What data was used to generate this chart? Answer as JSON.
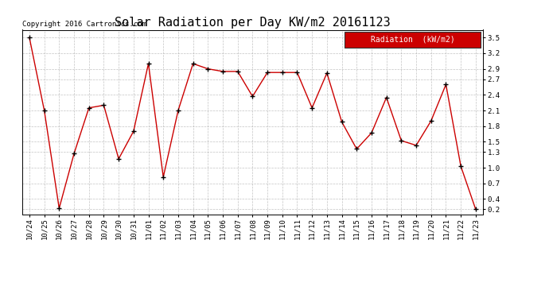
{
  "title": "Solar Radiation per Day KW/m2 20161123",
  "copyright_text": "Copyright 2016 Cartronics.com",
  "legend_label": "Radiation  (kW/m2)",
  "dates": [
    "10/24",
    "10/25",
    "10/26",
    "10/27",
    "10/28",
    "10/29",
    "10/30",
    "10/31",
    "11/01",
    "11/02",
    "11/03",
    "11/04",
    "11/05",
    "11/06",
    "11/07",
    "11/08",
    "11/09",
    "11/10",
    "11/11",
    "11/12",
    "11/13",
    "11/14",
    "11/15",
    "11/16",
    "11/17",
    "11/18",
    "11/19",
    "11/20",
    "11/21",
    "11/22",
    "11/23"
  ],
  "values": [
    3.5,
    2.1,
    0.22,
    1.27,
    2.15,
    2.2,
    1.17,
    1.7,
    3.0,
    0.82,
    2.1,
    3.0,
    2.9,
    2.85,
    2.85,
    2.37,
    2.83,
    2.83,
    2.83,
    2.15,
    2.82,
    1.88,
    1.36,
    1.67,
    2.35,
    1.52,
    1.43,
    1.9,
    2.6,
    1.03,
    0.2
  ],
  "line_color": "#cc0000",
  "marker_color": "#000000",
  "legend_bg": "#cc0000",
  "legend_text_color": "#ffffff",
  "grid_color": "#aaaaaa",
  "ylim": [
    0.1,
    3.65
  ],
  "yticks": [
    0.2,
    0.4,
    0.7,
    1.0,
    1.3,
    1.5,
    1.8,
    2.1,
    2.4,
    2.7,
    2.9,
    3.2,
    3.5
  ],
  "title_fontsize": 11,
  "copyright_fontsize": 6.5,
  "axis_fontsize": 6.5,
  "legend_fontsize": 7
}
